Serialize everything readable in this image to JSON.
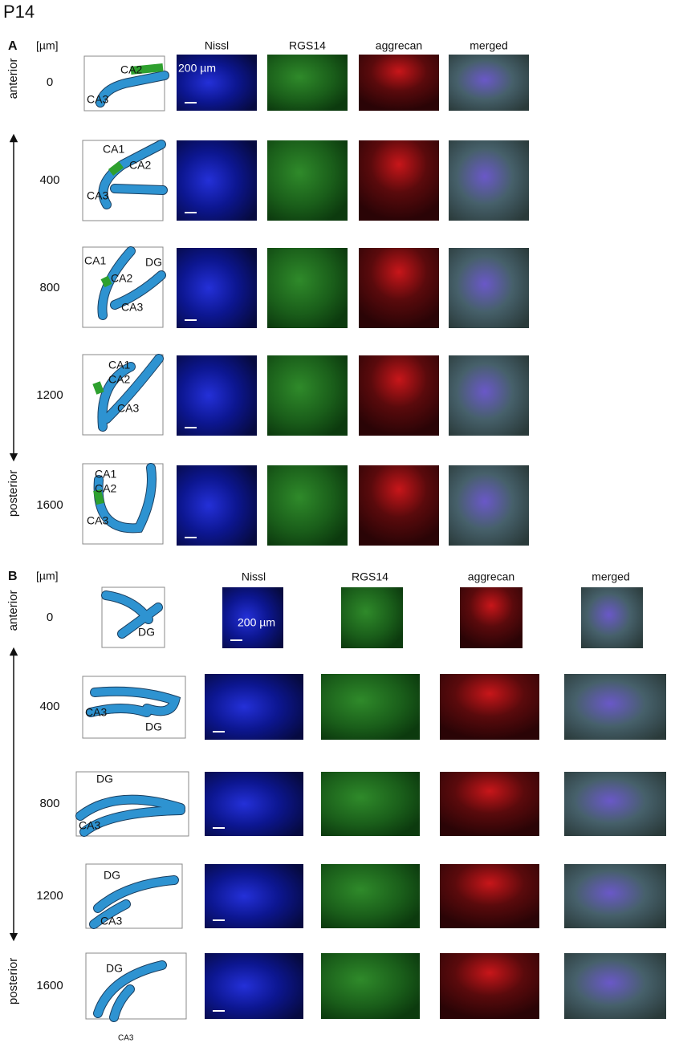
{
  "title": "P14",
  "panels": [
    {
      "label": "A",
      "unit": "[µm]",
      "columns": [
        "Nissl",
        "RGS14",
        "aggrecan",
        "merged"
      ],
      "scale_bar": "200 µm",
      "axis": {
        "start": "anterior",
        "end": "posterior"
      },
      "rows": [
        {
          "depth": 0,
          "labels": [
            "CA2",
            "CA3"
          ]
        },
        {
          "depth": 400,
          "labels": [
            "CA1",
            "CA2",
            "CA3"
          ]
        },
        {
          "depth": 800,
          "labels": [
            "CA1",
            "DG",
            "CA2",
            "CA3"
          ]
        },
        {
          "depth": 1200,
          "labels": [
            "CA1",
            "CA2",
            "CA3"
          ]
        },
        {
          "depth": 1600,
          "labels": [
            "CA1",
            "CA2",
            "CA3"
          ]
        }
      ]
    },
    {
      "label": "B",
      "unit": "[µm]",
      "columns": [
        "Nissl",
        "RGS14",
        "aggrecan",
        "merged"
      ],
      "scale_bar": "200 µm",
      "axis": {
        "start": "anterior",
        "end": "posterior"
      },
      "rows": [
        {
          "depth": 0,
          "labels": [
            "DG"
          ]
        },
        {
          "depth": 400,
          "labels": [
            "CA3",
            "DG"
          ]
        },
        {
          "depth": 800,
          "labels": [
            "DG",
            "CA3"
          ]
        },
        {
          "depth": 1200,
          "labels": [
            "DG",
            "CA3"
          ]
        },
        {
          "depth": 1600,
          "labels": [
            "DG",
            "CA3"
          ]
        }
      ]
    }
  ]
}
